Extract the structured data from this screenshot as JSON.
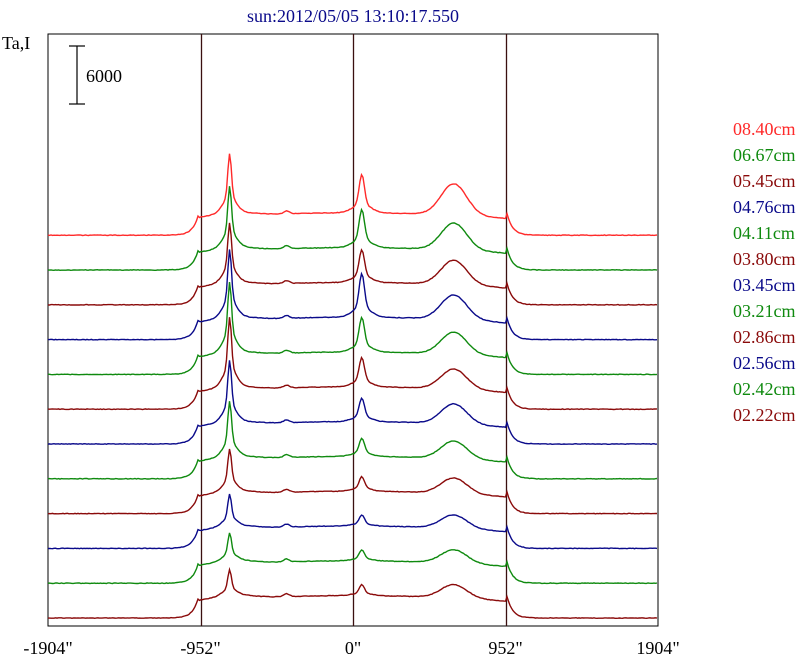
{
  "title": "sun:2012/05/05 13:10:17.550",
  "ylabel": "Ta,I",
  "colors": {
    "red": "#ff2a2a",
    "green": "#0f8a0f",
    "maroon": "#8a0a0a",
    "blue": "#0a0a8a",
    "axis": "#000000",
    "frame": "#000000",
    "vline": "#3a1010"
  },
  "chart_data": {
    "type": "line",
    "title": "sun:2012/05/05 13:10:17.550",
    "ylabel": "Ta,I",
    "xlabel": "",
    "xlim": [
      -1904,
      1904
    ],
    "x_ticks": [
      {
        "value": -1904,
        "label": "-1904\""
      },
      {
        "value": -952,
        "label": "-952\""
      },
      {
        "value": 0,
        "label": "0\""
      },
      {
        "value": 952,
        "label": "952\""
      },
      {
        "value": 1904,
        "label": "1904\""
      }
    ],
    "vertical_lines": [
      -952,
      0,
      952
    ],
    "scale_bar": {
      "value": 6000,
      "label": "6000"
    },
    "legend_position": "right",
    "series": [
      {
        "name": "08.40cm",
        "color": "red",
        "baseline_offset": 11,
        "peaks": [
          2.8,
          2.1,
          1.4
        ]
      },
      {
        "name": "06.67cm",
        "color": "green",
        "baseline_offset": 10,
        "peaks": [
          2.9,
          2.1,
          1.2
        ]
      },
      {
        "name": "05.45cm",
        "color": "maroon",
        "baseline_offset": 9,
        "peaks": [
          2.8,
          1.8,
          1.1
        ]
      },
      {
        "name": "04.76cm",
        "color": "blue",
        "baseline_offset": 8,
        "peaks": [
          3.2,
          2.4,
          1.1
        ]
      },
      {
        "name": "04.11cm",
        "color": "green",
        "baseline_offset": 7,
        "peaks": [
          3.3,
          1.9,
          1.0
        ]
      },
      {
        "name": "03.80cm",
        "color": "maroon",
        "baseline_offset": 6,
        "peaks": [
          3.3,
          1.6,
          0.9
        ]
      },
      {
        "name": "03.45cm",
        "color": "blue",
        "baseline_offset": 5,
        "peaks": [
          2.9,
          1.3,
          0.9
        ]
      },
      {
        "name": "03.21cm",
        "color": "green",
        "baseline_offset": 4,
        "peaks": [
          2.6,
          1.0,
          0.8
        ]
      },
      {
        "name": "02.86cm",
        "color": "maroon",
        "baseline_offset": 3,
        "peaks": [
          2.0,
          0.8,
          0.7
        ]
      },
      {
        "name": "02.56cm",
        "color": "blue",
        "baseline_offset": 2,
        "peaks": [
          1.5,
          0.6,
          0.6
        ]
      },
      {
        "name": "02.42cm",
        "color": "green",
        "baseline_offset": 1,
        "peaks": [
          1.3,
          0.6,
          0.6
        ]
      },
      {
        "name": "02.22cm",
        "color": "maroon",
        "baseline_offset": 0,
        "peaks": [
          1.2,
          0.6,
          0.6
        ]
      }
    ]
  }
}
